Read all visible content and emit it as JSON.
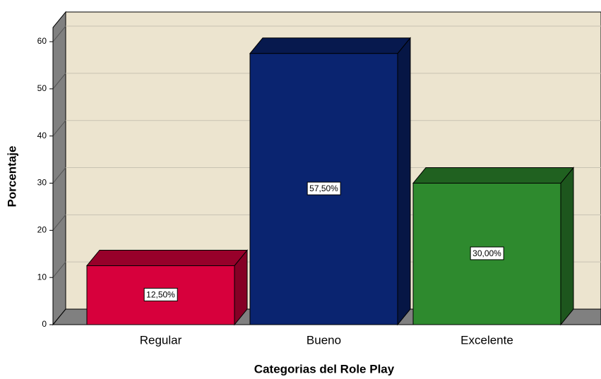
{
  "chart_data": {
    "type": "bar3d",
    "x_label": "Categorias del Role Play",
    "y_label": "Porcentaje",
    "categories": [
      "Regular",
      "Bueno",
      "Excelente"
    ],
    "values": [
      12.5,
      57.5,
      30
    ],
    "value_labels": [
      "12,50%",
      "57,50%",
      "30,00%"
    ],
    "colors": [
      "#d7003c",
      "#0a2470",
      "#2e8a2e"
    ],
    "ylim": [
      0,
      63
    ],
    "yticks": [
      0,
      10,
      20,
      30,
      40,
      50,
      60
    ],
    "grid": true
  }
}
